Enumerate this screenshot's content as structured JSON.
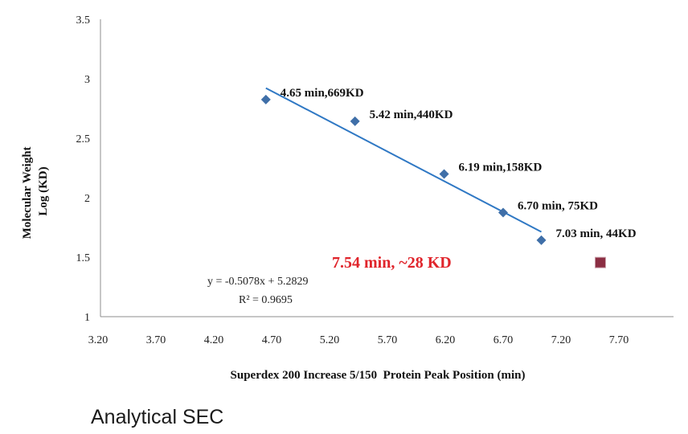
{
  "caption": "Analytical SEC",
  "colors": {
    "series": "#3f6fa8",
    "line": "#2f78c4",
    "unknown_marker": "#8b2e43",
    "unknown_label": "#e0242b"
  },
  "chart_data": {
    "type": "scatter",
    "xlabel": "Superdex 200 Increase 5/150  Protein Peak Position (min)",
    "ylabel": [
      "Molecular Weight",
      "Log (KD)"
    ],
    "xlim": [
      3.2,
      7.95
    ],
    "ylim": [
      1,
      3.5
    ],
    "xticks": [
      "3.20",
      "3.70",
      "4.20",
      "4.70",
      "5.20",
      "5.70",
      "6.20",
      "6.70",
      "7.20",
      "7.70"
    ],
    "yticks": [
      "1",
      "1.5",
      "2",
      "2.5",
      "3",
      "3.5"
    ],
    "grid": false,
    "series": [
      {
        "points": [
          {
            "x": 4.65,
            "y": 2.825,
            "label": "4.65 min,669KD"
          },
          {
            "x": 5.42,
            "y": 2.643,
            "label": "5.42 min,440KD"
          },
          {
            "x": 6.19,
            "y": 2.199,
            "label": "6.19 min,158KD"
          },
          {
            "x": 6.7,
            "y": 1.875,
            "label": "6.70 min,  75KD"
          },
          {
            "x": 7.03,
            "y": 1.643,
            "label": "7.03 min,  44KD"
          }
        ]
      }
    ],
    "unknown": {
      "x": 7.54,
      "y": 1.455,
      "label": "7.54 min, ~28 KD"
    },
    "trendline": {
      "slope": -0.5078,
      "intercept": 5.2829,
      "x_start": 4.65,
      "x_end": 7.03
    },
    "equation": "y = -0.5078x + 5.2829",
    "r_squared": "R² = 0.9695"
  }
}
